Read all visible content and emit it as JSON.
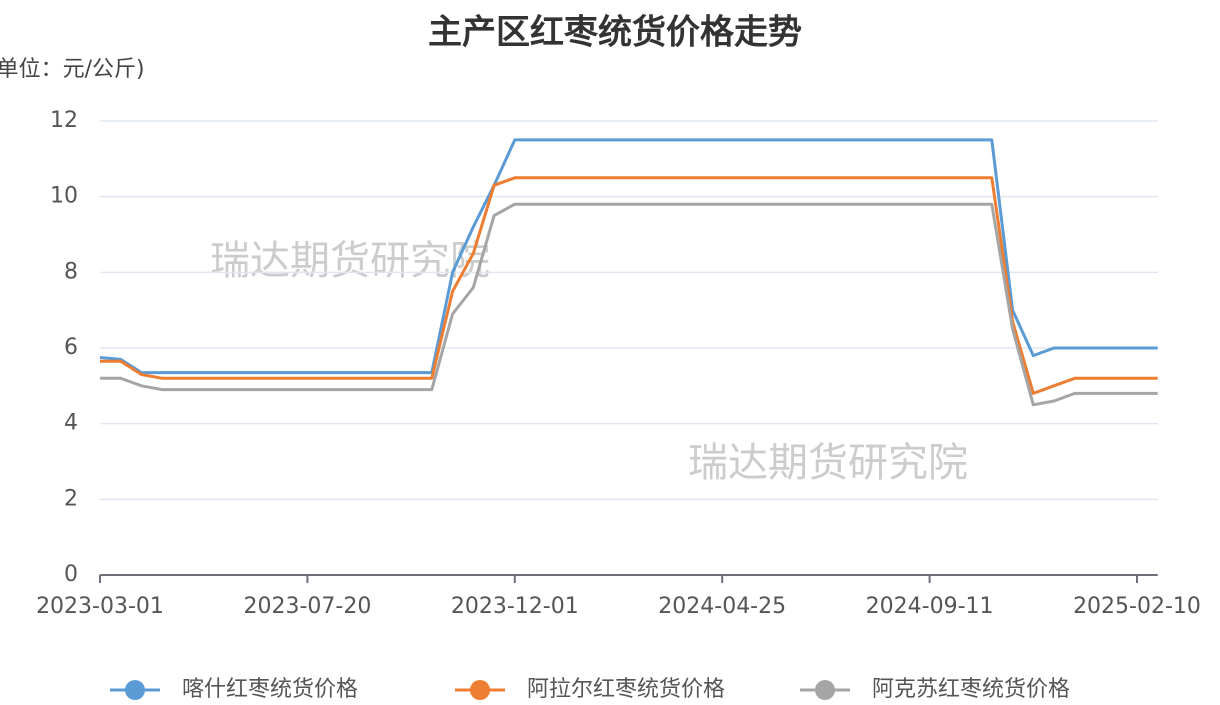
{
  "chart_data": {
    "type": "line",
    "title": "主产区红枣统货价格走势",
    "y_label": "(单位：元/公斤)",
    "watermarks": [
      "瑞达期货研究院",
      "瑞达期货研究院"
    ],
    "categories": [
      "2023-03-01",
      null,
      null,
      null,
      null,
      null,
      null,
      null,
      null,
      null,
      "2023-07-20",
      null,
      null,
      null,
      null,
      null,
      null,
      null,
      null,
      null,
      "2023-12-01",
      null,
      null,
      null,
      null,
      null,
      null,
      null,
      null,
      null,
      "2024-04-25",
      null,
      null,
      null,
      null,
      null,
      null,
      null,
      null,
      null,
      "2024-09-11",
      null,
      null,
      null,
      null,
      null,
      null,
      null,
      null,
      null,
      "2025-02-10",
      null
    ],
    "series": [
      {
        "name": "喀什红枣统货价格",
        "color": "#5b9bd5",
        "values": [
          5.75,
          5.7,
          5.35,
          5.35,
          5.35,
          5.35,
          5.35,
          5.35,
          5.35,
          5.35,
          5.35,
          5.35,
          5.35,
          5.35,
          5.35,
          5.35,
          5.35,
          8.0,
          9.2,
          10.3,
          11.5,
          11.5,
          11.5,
          11.5,
          11.5,
          11.5,
          11.5,
          11.5,
          11.5,
          11.5,
          11.5,
          11.5,
          11.5,
          11.5,
          11.5,
          11.5,
          11.5,
          11.5,
          11.5,
          11.5,
          11.5,
          11.5,
          11.5,
          11.5,
          7.0,
          5.8,
          6.0,
          6.0,
          6.0,
          6.0,
          6.0,
          6.0
        ]
      },
      {
        "name": "阿拉尔红枣统货价格",
        "color": "#ed7d31",
        "values": [
          5.65,
          5.65,
          5.3,
          5.2,
          5.2,
          5.2,
          5.2,
          5.2,
          5.2,
          5.2,
          5.2,
          5.2,
          5.2,
          5.2,
          5.2,
          5.2,
          5.2,
          7.5,
          8.5,
          10.3,
          10.5,
          10.5,
          10.5,
          10.5,
          10.5,
          10.5,
          10.5,
          10.5,
          10.5,
          10.5,
          10.5,
          10.5,
          10.5,
          10.5,
          10.5,
          10.5,
          10.5,
          10.5,
          10.5,
          10.5,
          10.5,
          10.5,
          10.5,
          10.5,
          6.7,
          4.8,
          5.0,
          5.2,
          5.2,
          5.2,
          5.2,
          5.2
        ]
      },
      {
        "name": "阿克苏红枣统货价格",
        "color": "#a5a5a5",
        "values": [
          5.2,
          5.2,
          5.0,
          4.9,
          4.9,
          4.9,
          4.9,
          4.9,
          4.9,
          4.9,
          4.9,
          4.9,
          4.9,
          4.9,
          4.9,
          4.9,
          4.9,
          6.9,
          7.6,
          9.5,
          9.8,
          9.8,
          9.8,
          9.8,
          9.8,
          9.8,
          9.8,
          9.8,
          9.8,
          9.8,
          9.8,
          9.8,
          9.8,
          9.8,
          9.8,
          9.8,
          9.8,
          9.8,
          9.8,
          9.8,
          9.8,
          9.8,
          9.8,
          9.8,
          6.5,
          4.5,
          4.6,
          4.8,
          4.8,
          4.8,
          4.8,
          4.8
        ]
      }
    ],
    "ylim": [
      0,
      12
    ],
    "yticks": [
      0,
      2,
      4,
      6,
      8,
      10,
      12
    ],
    "grid": true,
    "legend": "bottom"
  }
}
